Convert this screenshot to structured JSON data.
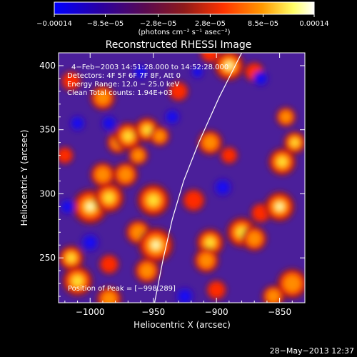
{
  "chart_data": {
    "type": "heatmap",
    "title": "Reconstructed RHESSI Image",
    "xlabel": "Heliocentric X (arcsec)",
    "ylabel": "Heliocentric Y (arcsec)",
    "xlim": [
      -1025,
      -830
    ],
    "ylim": [
      215,
      410
    ],
    "x_ticks": [
      -1000,
      -950,
      -900,
      -850
    ],
    "x_tick_labels": [
      "−1000",
      "−950",
      "−900",
      "−850"
    ],
    "y_ticks": [
      250,
      300,
      350,
      400
    ],
    "y_tick_labels": [
      "250",
      "300",
      "350",
      "400"
    ],
    "colorbar": {
      "range": [
        -0.00014,
        0.00014
      ],
      "ticks": [
        -0.00014,
        -8.5e-05,
        -2.8e-05,
        2.8e-05,
        8.5e-05,
        0.00014
      ],
      "tick_labels": [
        "−0.00014",
        "−8.5e−05",
        "−2.8e−05",
        "2.8e−05",
        "8.5e−05",
        "0.00014"
      ],
      "units_label": "(photons cm⁻² s⁻¹ asec⁻²)",
      "colors": [
        "#0000ff",
        "#3a0078",
        "#8f1a1a",
        "#ff3300",
        "#ff9900",
        "#ffff99",
        "#ffffff"
      ]
    },
    "annotations": [
      "4−Feb−2003 14:51:28.000 to 14:52:28.000",
      "Detectors: 4F 5F 6F 7F 8F, Att 0",
      "Energy Range: 12.0 − 25.0 keV",
      "Clean     Total counts: 1.94E+03"
    ],
    "peak_label": "Position of Peak = [−998,289]",
    "timestamp": "28−May−2013 12:37",
    "limb": [
      [
        -949,
        215
      ],
      [
        -942,
        250
      ],
      [
        -935,
        280
      ],
      [
        -926,
        310
      ],
      [
        -914,
        340
      ],
      [
        -898,
        375
      ],
      [
        -880,
        410
      ]
    ],
    "blobs": [
      {
        "x": -1000,
        "y": 290,
        "r": 14,
        "v": 1.0
      },
      {
        "x": -985,
        "y": 297,
        "r": 12,
        "v": 0.85
      },
      {
        "x": -990,
        "y": 315,
        "r": 10,
        "v": 0.65
      },
      {
        "x": -972,
        "y": 315,
        "r": 10,
        "v": 0.7
      },
      {
        "x": -962,
        "y": 330,
        "r": 8,
        "v": 0.6
      },
      {
        "x": -978,
        "y": 340,
        "r": 9,
        "v": 0.7
      },
      {
        "x": -970,
        "y": 345,
        "r": 11,
        "v": 0.9
      },
      {
        "x": -955,
        "y": 350,
        "r": 10,
        "v": 0.85
      },
      {
        "x": -945,
        "y": 345,
        "r": 8,
        "v": 0.6
      },
      {
        "x": -950,
        "y": 295,
        "r": 13,
        "v": 0.9
      },
      {
        "x": -962,
        "y": 270,
        "r": 10,
        "v": 0.75
      },
      {
        "x": -948,
        "y": 260,
        "r": 14,
        "v": 0.95
      },
      {
        "x": -955,
        "y": 240,
        "r": 10,
        "v": 0.7
      },
      {
        "x": -1015,
        "y": 250,
        "r": 10,
        "v": 0.85
      },
      {
        "x": -1010,
        "y": 232,
        "r": 12,
        "v": 0.9
      },
      {
        "x": -985,
        "y": 218,
        "r": 10,
        "v": 0.55
      },
      {
        "x": -985,
        "y": 245,
        "r": 8,
        "v": 0.45
      },
      {
        "x": -990,
        "y": 375,
        "r": 10,
        "v": 0.75
      },
      {
        "x": -1015,
        "y": 388,
        "r": 8,
        "v": 0.5
      },
      {
        "x": -1020,
        "y": 330,
        "r": 7,
        "v": 0.45
      },
      {
        "x": -930,
        "y": 380,
        "r": 8,
        "v": 0.5
      },
      {
        "x": -905,
        "y": 340,
        "r": 10,
        "v": 0.55
      },
      {
        "x": -890,
        "y": 330,
        "r": 7,
        "v": 0.4
      },
      {
        "x": -918,
        "y": 295,
        "r": 9,
        "v": 0.5
      },
      {
        "x": -905,
        "y": 262,
        "r": 11,
        "v": 0.8
      },
      {
        "x": -908,
        "y": 248,
        "r": 10,
        "v": 0.7
      },
      {
        "x": -900,
        "y": 225,
        "r": 8,
        "v": 0.5
      },
      {
        "x": -880,
        "y": 270,
        "r": 12,
        "v": 0.8
      },
      {
        "x": -870,
        "y": 265,
        "r": 10,
        "v": 0.75
      },
      {
        "x": -865,
        "y": 285,
        "r": 8,
        "v": 0.5
      },
      {
        "x": -850,
        "y": 290,
        "r": 12,
        "v": 0.95
      },
      {
        "x": -848,
        "y": 325,
        "r": 11,
        "v": 0.9
      },
      {
        "x": -838,
        "y": 340,
        "r": 9,
        "v": 0.85
      },
      {
        "x": -845,
        "y": 360,
        "r": 8,
        "v": 0.6
      },
      {
        "x": -840,
        "y": 230,
        "r": 12,
        "v": 0.75
      },
      {
        "x": -855,
        "y": 220,
        "r": 9,
        "v": 0.55
      },
      {
        "x": -905,
        "y": 410,
        "r": 8,
        "v": 0.5
      },
      {
        "x": -890,
        "y": 400,
        "r": 12,
        "v": 0.95
      },
      {
        "x": -870,
        "y": 395,
        "r": 8,
        "v": 0.5
      },
      {
        "x": -1000,
        "y": 262,
        "r": 7,
        "v": -0.5
      },
      {
        "x": -1010,
        "y": 355,
        "r": 6,
        "v": -0.55
      },
      {
        "x": -985,
        "y": 355,
        "r": 6,
        "v": -0.45
      },
      {
        "x": -1018,
        "y": 290,
        "r": 6,
        "v": -0.5
      },
      {
        "x": -925,
        "y": 220,
        "r": 7,
        "v": -0.5
      },
      {
        "x": -935,
        "y": 360,
        "r": 6,
        "v": -0.5
      },
      {
        "x": -895,
        "y": 305,
        "r": 7,
        "v": -0.55
      },
      {
        "x": -865,
        "y": 390,
        "r": 6,
        "v": -0.5
      },
      {
        "x": -915,
        "y": 395,
        "r": 5,
        "v": -0.4
      },
      {
        "x": -960,
        "y": 395,
        "r": 6,
        "v": -0.35
      }
    ]
  }
}
